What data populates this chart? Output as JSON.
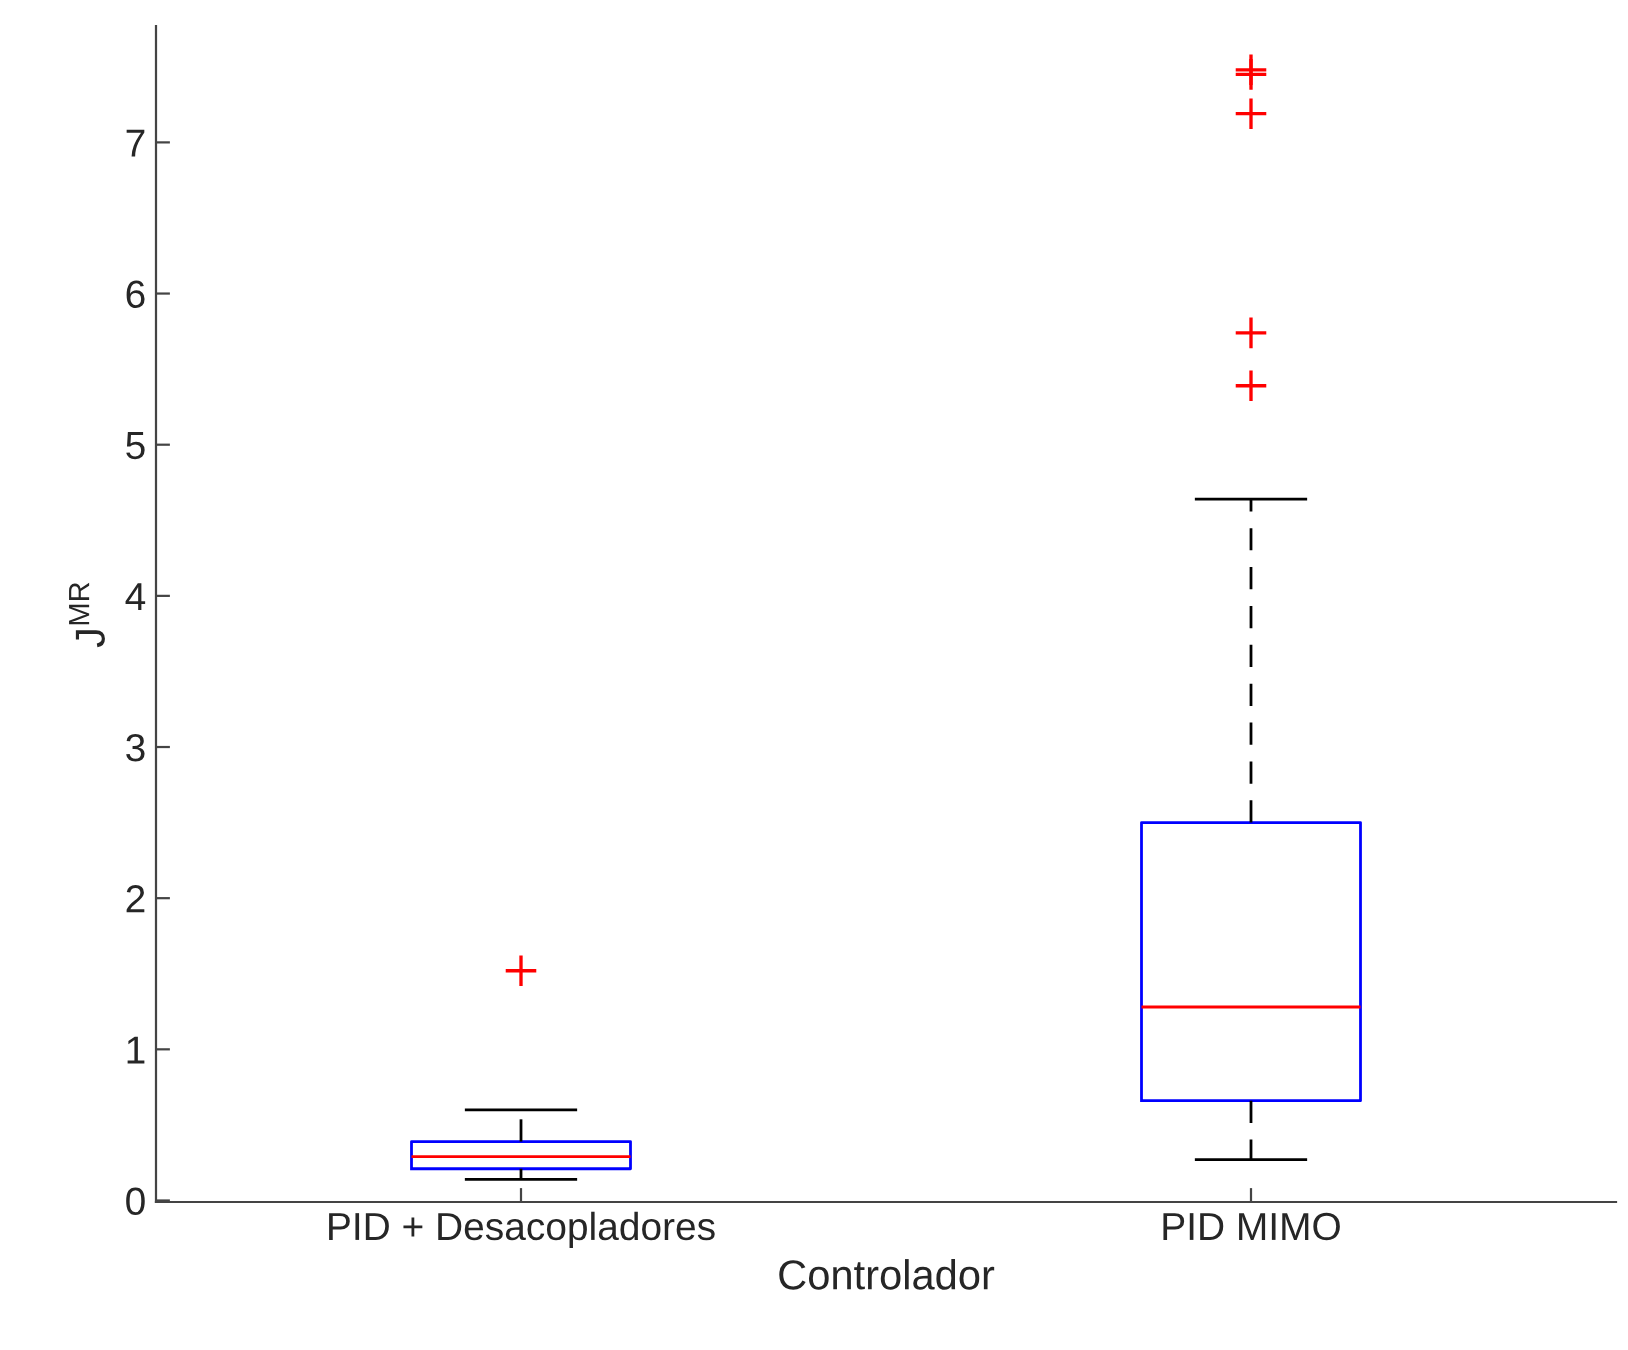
{
  "chart_data": {
    "type": "box",
    "xlabel": "Controlador",
    "ylabel": "J$^{MR}$",
    "categories": [
      "PID + Desacopladores",
      "PID MIMO"
    ],
    "boxes": [
      {
        "low": 0.14,
        "q1": 0.21,
        "median": 0.29,
        "q3": 0.39,
        "high": 0.6,
        "outliers": [
          1.52
        ]
      },
      {
        "low": 0.27,
        "q1": 0.66,
        "median": 1.28,
        "q3": 2.5,
        "high": 4.64,
        "outliers": [
          5.39,
          5.74,
          7.19,
          7.45,
          7.48
        ]
      }
    ],
    "color": "#0000ff",
    "marker": "cross",
    "line_style": "dashed",
    "ylim": [
      -0.01,
      7.77
    ],
    "yticks": [
      0,
      1,
      2,
      3,
      4,
      5,
      6,
      7
    ],
    "grid": false
  }
}
